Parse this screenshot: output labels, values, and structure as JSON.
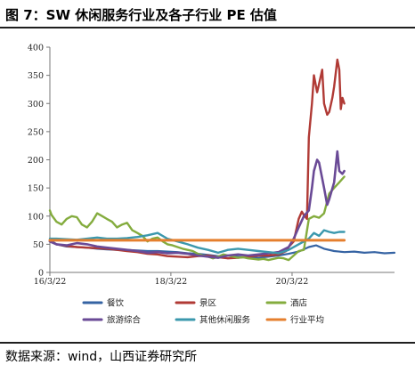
{
  "header": {
    "title": "图 7：SW 休闲服务行业及各子行业 PE 估值"
  },
  "footer": {
    "source": "数据来源：wind，山西证券研究所"
  },
  "chart_data": {
    "type": "line",
    "title": "",
    "xlabel": "",
    "ylabel": "",
    "ylim": [
      0,
      400
    ],
    "yticks": [
      0,
      50,
      100,
      150,
      200,
      250,
      300,
      350,
      400
    ],
    "x_range": [
      "2016-03-22",
      "2021-11-30"
    ],
    "x_ticks": [
      {
        "date": "2016-03-22",
        "label": "16/3/22"
      },
      {
        "date": "2018-03-22",
        "label": "18/3/22"
      },
      {
        "date": "2020-03-22",
        "label": "20/3/22"
      }
    ],
    "grid": false,
    "legend_position": "bottom",
    "series": [
      {
        "name": "餐饮",
        "color": "#3563a3",
        "width": 2.2,
        "points": [
          [
            "2016-03-22",
            58
          ],
          [
            "2016-05-01",
            50
          ],
          [
            "2016-07-01",
            46
          ],
          [
            "2016-09-01",
            45
          ],
          [
            "2016-11-01",
            44
          ],
          [
            "2017-01-01",
            42
          ],
          [
            "2017-03-01",
            41
          ],
          [
            "2017-05-01",
            40
          ],
          [
            "2017-07-01",
            40
          ],
          [
            "2017-09-01",
            39
          ],
          [
            "2017-11-01",
            38
          ],
          [
            "2018-01-01",
            38
          ],
          [
            "2018-03-01",
            37
          ],
          [
            "2018-05-01",
            36
          ],
          [
            "2018-07-01",
            34
          ],
          [
            "2018-09-01",
            33
          ],
          [
            "2018-11-01",
            31
          ],
          [
            "2019-01-01",
            29
          ],
          [
            "2019-03-01",
            30
          ],
          [
            "2019-05-01",
            28
          ],
          [
            "2019-07-01",
            26
          ],
          [
            "2019-09-01",
            26
          ],
          [
            "2019-11-01",
            28
          ],
          [
            "2020-01-01",
            30
          ],
          [
            "2020-03-01",
            33
          ],
          [
            "2020-05-01",
            37
          ],
          [
            "2020-07-01",
            45
          ],
          [
            "2020-08-15",
            48
          ],
          [
            "2020-10-01",
            42
          ],
          [
            "2020-12-01",
            38
          ],
          [
            "2021-02-01",
            36
          ],
          [
            "2021-04-01",
            37
          ],
          [
            "2021-06-01",
            35
          ],
          [
            "2021-08-01",
            36
          ],
          [
            "2021-10-01",
            34
          ],
          [
            "2021-11-30",
            35
          ]
        ]
      },
      {
        "name": "景区",
        "color": "#b03a35",
        "width": 2.4,
        "points": [
          [
            "2016-03-22",
            55
          ],
          [
            "2016-05-01",
            50
          ],
          [
            "2016-07-01",
            47
          ],
          [
            "2016-09-01",
            45
          ],
          [
            "2016-11-01",
            44
          ],
          [
            "2017-01-01",
            43
          ],
          [
            "2017-03-01",
            42
          ],
          [
            "2017-05-01",
            40
          ],
          [
            "2017-07-01",
            38
          ],
          [
            "2017-09-01",
            36
          ],
          [
            "2017-11-01",
            33
          ],
          [
            "2018-01-01",
            32
          ],
          [
            "2018-03-01",
            29
          ],
          [
            "2018-05-01",
            28
          ],
          [
            "2018-07-01",
            27
          ],
          [
            "2018-09-01",
            29
          ],
          [
            "2018-11-01",
            30
          ],
          [
            "2019-01-01",
            27
          ],
          [
            "2019-03-01",
            25
          ],
          [
            "2019-05-01",
            26
          ],
          [
            "2019-07-01",
            28
          ],
          [
            "2019-09-01",
            30
          ],
          [
            "2019-11-01",
            30
          ],
          [
            "2020-01-01",
            32
          ],
          [
            "2020-02-15",
            38
          ],
          [
            "2020-03-01",
            45
          ],
          [
            "2020-04-01",
            55
          ],
          [
            "2020-05-01",
            95
          ],
          [
            "2020-05-20",
            108
          ],
          [
            "2020-06-01",
            102
          ],
          [
            "2020-06-20",
            95
          ],
          [
            "2020-07-01",
            240
          ],
          [
            "2020-07-20",
            300
          ],
          [
            "2020-08-01",
            350
          ],
          [
            "2020-08-20",
            320
          ],
          [
            "2020-09-01",
            335
          ],
          [
            "2020-09-20",
            360
          ],
          [
            "2020-10-01",
            300
          ],
          [
            "2020-10-20",
            280
          ],
          [
            "2020-11-01",
            285
          ],
          [
            "2020-11-20",
            310
          ],
          [
            "2020-12-01",
            330
          ],
          [
            "2020-12-20",
            378
          ],
          [
            "2021-01-01",
            360
          ],
          [
            "2021-01-10",
            290
          ],
          [
            "2021-01-20",
            310
          ],
          [
            "2021-01-31",
            300
          ]
        ]
      },
      {
        "name": "酒店",
        "color": "#84ac3e",
        "width": 2.4,
        "points": [
          [
            "2016-03-22",
            110
          ],
          [
            "2016-04-01",
            102
          ],
          [
            "2016-05-01",
            90
          ],
          [
            "2016-06-01",
            85
          ],
          [
            "2016-07-01",
            95
          ],
          [
            "2016-08-01",
            100
          ],
          [
            "2016-09-01",
            98
          ],
          [
            "2016-10-01",
            85
          ],
          [
            "2016-11-01",
            80
          ],
          [
            "2016-12-01",
            90
          ],
          [
            "2017-01-01",
            105
          ],
          [
            "2017-02-01",
            100
          ],
          [
            "2017-03-01",
            95
          ],
          [
            "2017-04-01",
            90
          ],
          [
            "2017-05-01",
            80
          ],
          [
            "2017-06-01",
            85
          ],
          [
            "2017-07-01",
            88
          ],
          [
            "2017-08-01",
            75
          ],
          [
            "2017-09-01",
            70
          ],
          [
            "2017-10-01",
            65
          ],
          [
            "2017-11-01",
            55
          ],
          [
            "2017-12-01",
            60
          ],
          [
            "2018-01-01",
            62
          ],
          [
            "2018-02-01",
            55
          ],
          [
            "2018-03-01",
            50
          ],
          [
            "2018-04-01",
            48
          ],
          [
            "2018-05-01",
            45
          ],
          [
            "2018-06-01",
            42
          ],
          [
            "2018-07-01",
            40
          ],
          [
            "2018-08-01",
            38
          ],
          [
            "2018-09-01",
            33
          ],
          [
            "2018-10-01",
            30
          ],
          [
            "2018-11-01",
            28
          ],
          [
            "2018-12-01",
            25
          ],
          [
            "2019-01-01",
            28
          ],
          [
            "2019-02-01",
            32
          ],
          [
            "2019-03-01",
            30
          ],
          [
            "2019-04-01",
            28
          ],
          [
            "2019-05-01",
            26
          ],
          [
            "2019-06-01",
            27
          ],
          [
            "2019-07-01",
            25
          ],
          [
            "2019-08-01",
            24
          ],
          [
            "2019-09-01",
            23
          ],
          [
            "2019-10-01",
            24
          ],
          [
            "2019-11-01",
            22
          ],
          [
            "2019-12-01",
            24
          ],
          [
            "2020-01-01",
            26
          ],
          [
            "2020-02-01",
            25
          ],
          [
            "2020-03-01",
            22
          ],
          [
            "2020-04-01",
            30
          ],
          [
            "2020-05-01",
            38
          ],
          [
            "2020-06-01",
            40
          ],
          [
            "2020-07-01",
            95
          ],
          [
            "2020-08-01",
            100
          ],
          [
            "2020-09-01",
            97
          ],
          [
            "2020-10-01",
            105
          ],
          [
            "2020-11-01",
            140
          ],
          [
            "2020-12-01",
            150
          ],
          [
            "2021-01-01",
            160
          ],
          [
            "2021-01-31",
            170
          ]
        ]
      },
      {
        "name": "旅游综合",
        "color": "#6a4a96",
        "width": 2.6,
        "points": [
          [
            "2016-03-22",
            55
          ],
          [
            "2016-05-01",
            50
          ],
          [
            "2016-07-01",
            48
          ],
          [
            "2016-09-01",
            52
          ],
          [
            "2016-11-01",
            50
          ],
          [
            "2017-01-01",
            46
          ],
          [
            "2017-03-01",
            44
          ],
          [
            "2017-05-01",
            42
          ],
          [
            "2017-07-01",
            40
          ],
          [
            "2017-09-01",
            38
          ],
          [
            "2017-11-01",
            35
          ],
          [
            "2018-01-01",
            36
          ],
          [
            "2018-03-01",
            34
          ],
          [
            "2018-05-01",
            35
          ],
          [
            "2018-07-01",
            33
          ],
          [
            "2018-09-01",
            30
          ],
          [
            "2018-11-01",
            28
          ],
          [
            "2019-01-01",
            26
          ],
          [
            "2019-03-01",
            30
          ],
          [
            "2019-05-01",
            32
          ],
          [
            "2019-07-01",
            30
          ],
          [
            "2019-09-01",
            32
          ],
          [
            "2019-11-01",
            34
          ],
          [
            "2020-01-01",
            36
          ],
          [
            "2020-03-01",
            45
          ],
          [
            "2020-04-01",
            60
          ],
          [
            "2020-05-01",
            80
          ],
          [
            "2020-06-01",
            100
          ],
          [
            "2020-07-01",
            110
          ],
          [
            "2020-07-20",
            150
          ],
          [
            "2020-08-01",
            180
          ],
          [
            "2020-08-20",
            200
          ],
          [
            "2020-09-01",
            195
          ],
          [
            "2020-10-01",
            150
          ],
          [
            "2020-10-20",
            120
          ],
          [
            "2020-11-01",
            130
          ],
          [
            "2020-12-01",
            160
          ],
          [
            "2020-12-20",
            215
          ],
          [
            "2021-01-01",
            180
          ],
          [
            "2021-01-20",
            175
          ],
          [
            "2021-01-31",
            180
          ]
        ]
      },
      {
        "name": "其他休闲服务",
        "color": "#3b98ad",
        "width": 2.4,
        "points": [
          [
            "2016-03-22",
            60
          ],
          [
            "2016-05-01",
            60
          ],
          [
            "2016-07-01",
            59
          ],
          [
            "2016-09-01",
            58
          ],
          [
            "2016-11-01",
            60
          ],
          [
            "2017-01-01",
            62
          ],
          [
            "2017-03-01",
            60
          ],
          [
            "2017-05-01",
            60
          ],
          [
            "2017-07-01",
            61
          ],
          [
            "2017-09-01",
            63
          ],
          [
            "2017-11-01",
            66
          ],
          [
            "2018-01-01",
            70
          ],
          [
            "2018-03-01",
            60
          ],
          [
            "2018-05-01",
            55
          ],
          [
            "2018-07-01",
            50
          ],
          [
            "2018-09-01",
            44
          ],
          [
            "2018-11-01",
            40
          ],
          [
            "2019-01-01",
            35
          ],
          [
            "2019-03-01",
            40
          ],
          [
            "2019-05-01",
            42
          ],
          [
            "2019-07-01",
            40
          ],
          [
            "2019-09-01",
            38
          ],
          [
            "2019-11-01",
            36
          ],
          [
            "2020-01-01",
            34
          ],
          [
            "2020-03-01",
            40
          ],
          [
            "2020-05-01",
            50
          ],
          [
            "2020-07-01",
            60
          ],
          [
            "2020-08-01",
            70
          ],
          [
            "2020-09-01",
            65
          ],
          [
            "2020-10-01",
            75
          ],
          [
            "2020-11-01",
            72
          ],
          [
            "2020-12-01",
            70
          ],
          [
            "2021-01-01",
            72
          ],
          [
            "2021-01-31",
            72
          ]
        ]
      },
      {
        "name": "行业平均",
        "color": "#e57f2e",
        "width": 3,
        "points": [
          [
            "2016-03-22",
            57
          ],
          [
            "2021-01-31",
            57
          ]
        ]
      }
    ]
  }
}
